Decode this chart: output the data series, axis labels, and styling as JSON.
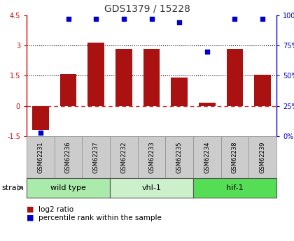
{
  "title": "GDS1379 / 15228",
  "samples": [
    "GSM62231",
    "GSM62236",
    "GSM62237",
    "GSM62232",
    "GSM62233",
    "GSM62235",
    "GSM62234",
    "GSM62238",
    "GSM62239"
  ],
  "log2_ratio": [
    -1.2,
    1.6,
    3.15,
    2.85,
    2.85,
    1.4,
    0.18,
    2.85,
    1.55
  ],
  "percentile": [
    3,
    97,
    97,
    97,
    97,
    94,
    70,
    97,
    97
  ],
  "groups": [
    {
      "label": "wild type",
      "start": 0,
      "end": 3,
      "color": "#aaeaaa"
    },
    {
      "label": "vhl-1",
      "start": 3,
      "end": 6,
      "color": "#ccf0cc"
    },
    {
      "label": "hif-1",
      "start": 6,
      "end": 9,
      "color": "#55dd55"
    }
  ],
  "ylim_left": [
    -1.5,
    4.5
  ],
  "ylim_right": [
    0,
    100
  ],
  "yticks_left": [
    -1.5,
    0,
    1.5,
    3.0,
    4.5
  ],
  "yticks_right": [
    0,
    25,
    50,
    75,
    100
  ],
  "ytick_labels_left": [
    "-1.5",
    "0",
    "1.5",
    "3",
    "4.5"
  ],
  "ytick_labels_right": [
    "0%",
    "25%",
    "50%",
    "75%",
    "100%"
  ],
  "hline_dotted": [
    1.5,
    3.0
  ],
  "bar_color": "#aa1111",
  "dot_color": "#0000cc",
  "zero_line_color": "#cc3333",
  "legend_bar_label": "log2 ratio",
  "legend_dot_label": "percentile rank within the sample",
  "strain_label": "strain",
  "sample_box_color": "#cccccc",
  "title_color": "#333333",
  "left_spine_color": "#cc0000",
  "right_spine_color": "#0000cc"
}
